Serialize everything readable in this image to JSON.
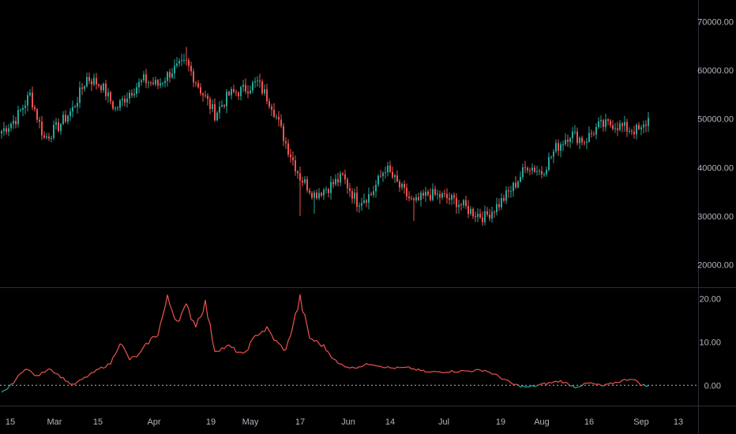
{
  "chart_data": [
    {
      "type": "candlestick",
      "panel": "price",
      "y_ticks": [
        "70000.00",
        "60000.00",
        "50000.00",
        "40000.00",
        "30000.00",
        "20000.00"
      ],
      "y_tick_values": [
        70000,
        60000,
        50000,
        40000,
        30000,
        20000
      ],
      "ylim": [
        15500,
        74500
      ],
      "colors": {
        "up": "#26a69a",
        "down": "#ef5350"
      },
      "x_ticks": [
        "15",
        "Mar",
        "15",
        "Apr",
        "19",
        "May",
        "17",
        "Jun",
        "14",
        "Jul",
        "19",
        "Aug",
        "16",
        "Sep",
        "13"
      ],
      "close_anchors": [
        [
          0,
          47500
        ],
        [
          6,
          50000
        ],
        [
          12,
          55000
        ],
        [
          18,
          46000
        ],
        [
          24,
          48500
        ],
        [
          30,
          52000
        ],
        [
          36,
          58500
        ],
        [
          42,
          57000
        ],
        [
          48,
          52000
        ],
        [
          54,
          55500
        ],
        [
          60,
          58000
        ],
        [
          66,
          57000
        ],
        [
          72,
          60000
        ],
        [
          78,
          61500
        ],
        [
          84,
          56000
        ],
        [
          90,
          51000
        ],
        [
          96,
          55000
        ],
        [
          102,
          56000
        ],
        [
          108,
          57500
        ],
        [
          114,
          53000
        ],
        [
          120,
          45000
        ],
        [
          126,
          38000
        ],
        [
          132,
          34500
        ],
        [
          138,
          36000
        ],
        [
          144,
          38000
        ],
        [
          150,
          33000
        ],
        [
          156,
          34500
        ],
        [
          162,
          40000
        ],
        [
          168,
          36000
        ],
        [
          174,
          32500
        ],
        [
          180,
          34500
        ],
        [
          186,
          34000
        ],
        [
          192,
          33000
        ],
        [
          198,
          31000
        ],
        [
          204,
          29800
        ],
        [
          210,
          32500
        ],
        [
          216,
          36000
        ],
        [
          222,
          40500
        ],
        [
          228,
          39000
        ],
        [
          234,
          44000
        ],
        [
          240,
          47000
        ],
        [
          246,
          45500
        ],
        [
          252,
          48500
        ],
        [
          258,
          49000
        ],
        [
          264,
          48000
        ],
        [
          270,
          47500
        ],
        [
          273,
          50000
        ]
      ]
    },
    {
      "type": "line",
      "panel": "indicator",
      "y_ticks": [
        "20.00",
        "10.00",
        "0.00"
      ],
      "y_tick_values": [
        20,
        10,
        0
      ],
      "ylim": [
        -4.7,
        22.5
      ],
      "zero_line": {
        "value": 0,
        "style": "dashed"
      },
      "colors": {
        "above": "#ef5350",
        "below": "#26a69a"
      },
      "anchors": [
        [
          0,
          -1.8
        ],
        [
          4,
          0
        ],
        [
          10,
          4
        ],
        [
          15,
          2
        ],
        [
          20,
          4
        ],
        [
          25,
          2
        ],
        [
          30,
          0
        ],
        [
          36,
          2
        ],
        [
          42,
          4
        ],
        [
          46,
          5
        ],
        [
          50,
          10
        ],
        [
          54,
          6
        ],
        [
          58,
          7
        ],
        [
          62,
          10
        ],
        [
          66,
          12
        ],
        [
          70,
          20
        ],
        [
          74,
          15
        ],
        [
          78,
          18
        ],
        [
          82,
          14
        ],
        [
          86,
          19
        ],
        [
          90,
          8
        ],
        [
          96,
          9
        ],
        [
          102,
          7
        ],
        [
          108,
          12
        ],
        [
          112,
          13
        ],
        [
          116,
          10
        ],
        [
          120,
          8
        ],
        [
          126,
          20
        ],
        [
          130,
          11
        ],
        [
          136,
          9
        ],
        [
          142,
          5
        ],
        [
          148,
          4
        ],
        [
          156,
          5
        ],
        [
          164,
          4
        ],
        [
          172,
          4
        ],
        [
          180,
          3
        ],
        [
          188,
          3.2
        ],
        [
          196,
          3.3
        ],
        [
          204,
          3.5
        ],
        [
          210,
          2
        ],
        [
          216,
          0.2
        ],
        [
          222,
          -0.5
        ],
        [
          230,
          0.4
        ],
        [
          236,
          1
        ],
        [
          242,
          -0.4
        ],
        [
          248,
          0.5
        ],
        [
          254,
          -0.2
        ],
        [
          260,
          0.8
        ],
        [
          266,
          1.6
        ],
        [
          270,
          0.2
        ],
        [
          273,
          -0.3
        ]
      ]
    }
  ]
}
